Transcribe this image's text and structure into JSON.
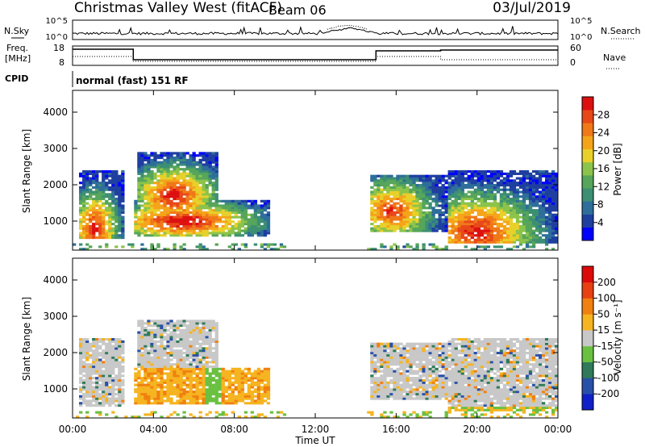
{
  "header": {
    "site": "Christmas Valley West (fitACF)",
    "beam": "Beam 06",
    "date": "03/Jul/2019"
  },
  "summary": {
    "nsky_label": "N.Sky",
    "nsky_ticks": [
      "10^5",
      "10^0"
    ],
    "nsearch_label": "N.Search",
    "nsearch_ticks": [
      "10^5",
      "10^0"
    ],
    "freq_label_1": "Freq.",
    "freq_label_2": "[MHz]",
    "freq_ticks": [
      "18",
      "8"
    ],
    "nave_label": "Nave",
    "nave_ticks": [
      "60",
      "0"
    ],
    "cpid_label": "CPID",
    "cpid_value": "normal (fast) 151 RF"
  },
  "chart_data": [
    {
      "type": "heatmap",
      "name": "power",
      "ylabel": "Slant Range [km]",
      "ylim": [
        200,
        4600
      ],
      "yticks": [
        "4000",
        "3000",
        "2000",
        "1000"
      ],
      "ytick_values": [
        4000,
        3000,
        2000,
        1000
      ],
      "xlim": [
        0,
        24
      ],
      "colorbar": {
        "label": "Power [dB]",
        "ticks": [
          "28",
          "24",
          "20",
          "16",
          "12",
          "8",
          "4"
        ],
        "tick_values": [
          28,
          24,
          20,
          16,
          12,
          8,
          4
        ],
        "range": [
          0,
          32
        ],
        "colors": [
          "#0000ff",
          "#1f3fa0",
          "#2e6e9a",
          "#3c8f72",
          "#56a55a",
          "#8cc34a",
          "#e8d02a",
          "#f5a41a",
          "#f07818",
          "#e84818",
          "#dd1010"
        ]
      },
      "regions": [
        {
          "t0": 0.3,
          "t1": 2.5,
          "r0": 500,
          "r1": 2400,
          "peak": 28,
          "center_t": 1.1,
          "center_r": 800
        },
        {
          "t0": 3.2,
          "t1": 7.2,
          "r0": 1300,
          "r1": 2900,
          "peak": 28,
          "center_t": 5.0,
          "center_r": 1700
        },
        {
          "t0": 3.0,
          "t1": 9.8,
          "r0": 600,
          "r1": 1600,
          "peak": 30,
          "center_t": 5.5,
          "center_r": 1000
        },
        {
          "t0": 14.8,
          "t1": 18.5,
          "r0": 700,
          "r1": 2300,
          "peak": 26,
          "center_t": 15.8,
          "center_r": 1300
        },
        {
          "t0": 18.5,
          "t1": 24.0,
          "r0": 400,
          "r1": 2400,
          "peak": 28,
          "center_t": 20.0,
          "center_r": 700
        }
      ]
    },
    {
      "type": "heatmap",
      "name": "velocity",
      "ylabel": "Slant Range [km]",
      "ylim": [
        200,
        4600
      ],
      "yticks": [
        "4000",
        "3000",
        "2000",
        "1000"
      ],
      "ytick_values": [
        4000,
        3000,
        2000,
        1000
      ],
      "xlim": [
        0,
        24
      ],
      "xlabel": "Time UT",
      "xticks": [
        "00:00",
        "04:00",
        "08:00",
        "12:00",
        "16:00",
        "20:00",
        "00:00"
      ],
      "xtick_values": [
        0,
        4,
        8,
        12,
        16,
        20,
        24
      ],
      "colorbar": {
        "label": "Velocity [m s⁻¹]",
        "ticks": [
          "200",
          "100",
          "50",
          "15",
          "-15",
          "-50",
          "-100",
          "-200"
        ],
        "colors": [
          "#1020c8",
          "#2850a8",
          "#2e7a5a",
          "#6ac040",
          "#c8c8c8",
          "#f5b420",
          "#f08010",
          "#e84010",
          "#dd0a0a"
        ]
      }
    }
  ]
}
